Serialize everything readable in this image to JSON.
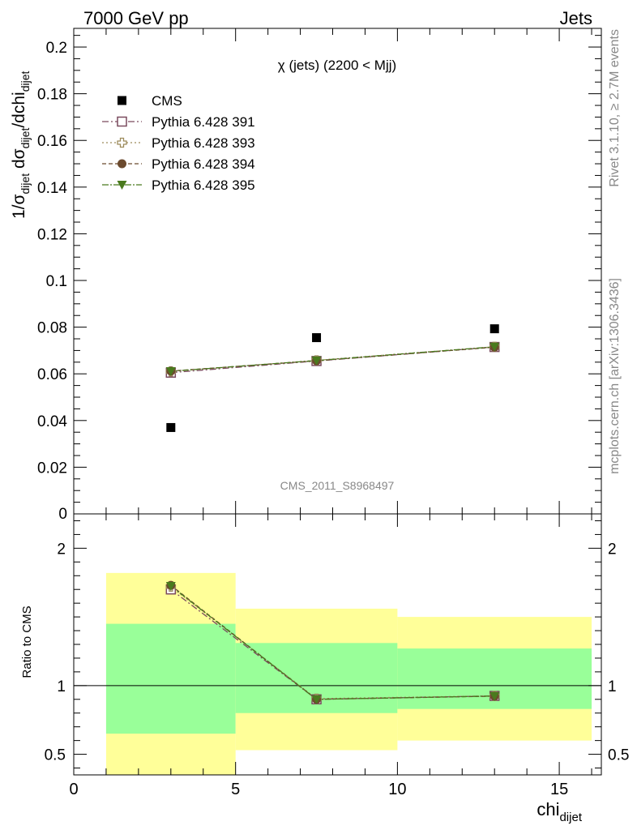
{
  "header": {
    "left": "7000 GeV pp",
    "right": "Jets"
  },
  "side_labels": {
    "rivet": "Rivet 3.1.10, ≥ 2.7M events",
    "mcplots": "mcplots.cern.ch [arXiv:1306.3436]"
  },
  "chart_data": [
    {
      "type": "scatter",
      "panel": "main",
      "title": "χ (jets) (2200 < Mjj)",
      "ylabel": {
        "main": "1/σ",
        "sub1": "dijet",
        "mid": " dσ",
        "sub2": "dijet",
        "tail": "/dchi",
        "sub3": "dijet"
      },
      "xlim": [
        0,
        16.3
      ],
      "ylim": [
        0,
        0.208
      ],
      "yticks": [
        0.02,
        0.04,
        0.06,
        0.08,
        0.1,
        0.12,
        0.14,
        0.16,
        0.18,
        0.2
      ],
      "ytick_labels": [
        "0.02",
        "0.04",
        "0.06",
        "0.08",
        "0.1",
        "0.12",
        "0.14",
        "0.16",
        "0.18",
        "0.2"
      ],
      "ytick_zero_label": "0",
      "watermark": "CMS_2011_S8968497",
      "x": [
        3,
        7.5,
        13
      ],
      "bin_edges": [
        1,
        5,
        10,
        16
      ],
      "legend_position": "top-left",
      "series": [
        {
          "name": "CMS",
          "marker": "filled-square",
          "color": "#000000",
          "values": [
            0.037,
            0.0755,
            0.0793
          ]
        },
        {
          "name": "Pythia 6.428 391",
          "marker": "open-square",
          "color": "#7a4a5e",
          "dash": "8,3,2,3",
          "values": [
            0.0605,
            0.0655,
            0.0715
          ]
        },
        {
          "name": "Pythia 6.428 393",
          "marker": "open-cross",
          "color": "#9c8a5a",
          "dash": "2,3",
          "values": [
            0.061,
            0.0658,
            0.0716
          ]
        },
        {
          "name": "Pythia 6.428 394",
          "marker": "filled-circle",
          "color": "#6b4a2e",
          "dash": "5,3",
          "values": [
            0.0612,
            0.0656,
            0.0714
          ]
        },
        {
          "name": "Pythia 6.428 395",
          "marker": "filled-triangle-down",
          "color": "#4a7a1e",
          "dash": "8,2,2,2",
          "values": [
            0.0611,
            0.0657,
            0.0716
          ]
        }
      ]
    },
    {
      "type": "scatter",
      "panel": "ratio",
      "ylabel": "Ratio to CMS",
      "xlabel": {
        "main": "chi",
        "sub": "dijet"
      },
      "xlim": [
        0,
        16.3
      ],
      "ylim": [
        0.35,
        2.25
      ],
      "xticks": [
        0,
        5,
        10,
        15
      ],
      "xtick_labels": [
        "0",
        "5",
        "10",
        "15"
      ],
      "yticks": [
        0.5,
        1,
        2
      ],
      "ytick_labels": [
        "0.5",
        "1",
        "2"
      ],
      "x": [
        3,
        7.5,
        13
      ],
      "bands": [
        {
          "x0": 1,
          "x1": 5,
          "yellow": [
            0.35,
            1.82
          ],
          "green": [
            0.65,
            1.45
          ]
        },
        {
          "x0": 5,
          "x1": 10,
          "yellow": [
            0.53,
            1.56
          ],
          "green": [
            0.8,
            1.31
          ]
        },
        {
          "x0": 10,
          "x1": 16,
          "yellow": [
            0.6,
            1.5
          ],
          "green": [
            0.83,
            1.27
          ]
        }
      ],
      "series": [
        {
          "name": "Pythia 6.428 391",
          "values": [
            1.7,
            0.9,
            0.925
          ]
        },
        {
          "name": "Pythia 6.428 393",
          "values": [
            1.72,
            0.905,
            0.925
          ]
        },
        {
          "name": "Pythia 6.428 394",
          "values": [
            1.73,
            0.9,
            0.923
          ]
        },
        {
          "name": "Pythia 6.428 395",
          "values": [
            1.725,
            0.9,
            0.924
          ]
        }
      ]
    }
  ]
}
